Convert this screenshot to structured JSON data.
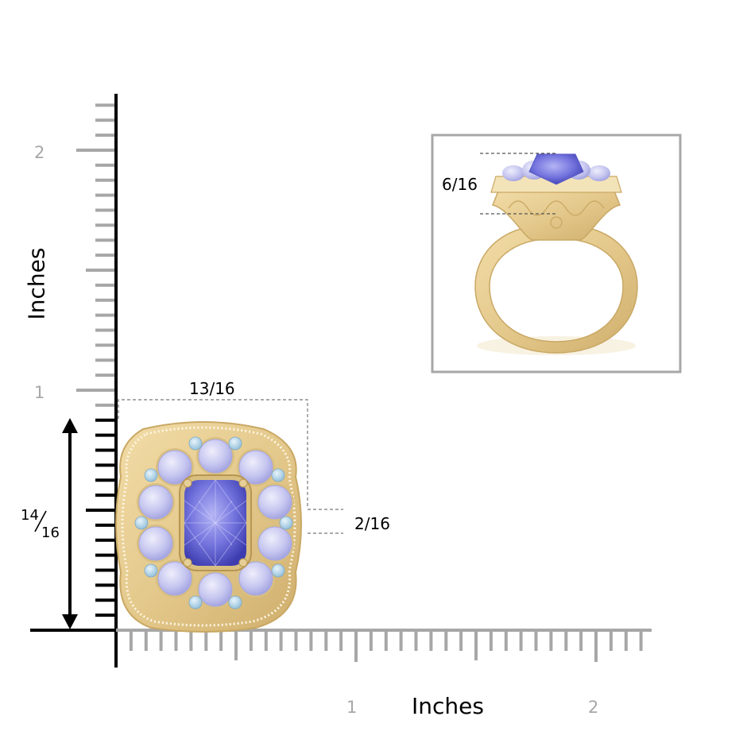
{
  "axes": {
    "y_label": "Inches",
    "x_label": "Inches",
    "y_tick_labels": [
      "2",
      "1"
    ],
    "x_tick_labels": [
      "1",
      "2"
    ]
  },
  "dimensions": {
    "width": "13/16",
    "height_numerator": "14",
    "height_denominator": "16",
    "side_offset": "2/16",
    "setting_height": "6/16"
  },
  "colors": {
    "gold": "#e8cf95",
    "gold_dark": "#c9a864",
    "tanzanite": "#7f7fe0",
    "tanzanite_light": "#c3c3f0",
    "aquamarine": "#a9d0e6",
    "ruler": "#a7a7a7"
  }
}
